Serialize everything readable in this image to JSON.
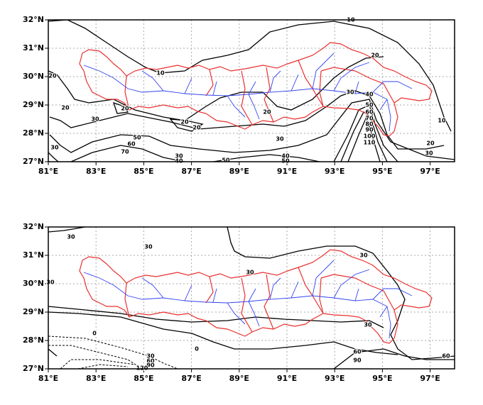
{
  "panels": [
    {
      "lon_ticks": [
        {
          "value": 81,
          "label": "81°E"
        },
        {
          "value": 83,
          "label": "83°E"
        },
        {
          "value": 85,
          "label": "85°E"
        },
        {
          "value": 87,
          "label": "87°E"
        },
        {
          "value": 89,
          "label": "89°E"
        },
        {
          "value": 91,
          "label": "91°E"
        },
        {
          "value": 93,
          "label": "93°E"
        },
        {
          "value": 95,
          "label": "95°E"
        },
        {
          "value": 97,
          "label": "97°E"
        }
      ],
      "lat_ticks": [
        {
          "value": 27,
          "label": "27°N"
        },
        {
          "value": 28,
          "label": "28°N"
        },
        {
          "value": 29,
          "label": "29°N"
        },
        {
          "value": 30,
          "label": "30°N"
        },
        {
          "value": 31,
          "label": "31°N"
        },
        {
          "value": 32,
          "label": "32°N"
        }
      ],
      "contour_labels": [
        "10",
        "20",
        "10",
        "20",
        "20",
        "20",
        "30",
        "40",
        "50",
        "60",
        "70",
        "80",
        "90",
        "100",
        "110",
        "20",
        "20",
        "20",
        "30",
        "50",
        "60",
        "70",
        "30",
        "40",
        "50",
        "40",
        "50",
        "30",
        "30",
        "10",
        "20",
        "30"
      ]
    },
    {
      "lon_ticks": [
        {
          "value": 81,
          "label": "81°E"
        },
        {
          "value": 83,
          "label": "83°E"
        },
        {
          "value": 85,
          "label": "85°E"
        },
        {
          "value": 87,
          "label": "87°E"
        },
        {
          "value": 89,
          "label": "89°E"
        },
        {
          "value": 91,
          "label": "91°E"
        },
        {
          "value": 93,
          "label": "93°E"
        },
        {
          "value": 95,
          "label": "95°E"
        },
        {
          "value": 97,
          "label": "97°E"
        }
      ],
      "lat_ticks": [
        {
          "value": 27,
          "label": "27°N"
        },
        {
          "value": 28,
          "label": "28°N"
        },
        {
          "value": 29,
          "label": "29°N"
        },
        {
          "value": 30,
          "label": "30°N"
        },
        {
          "value": 31,
          "label": "31°N"
        },
        {
          "value": 32,
          "label": "32°N"
        }
      ],
      "contour_labels": [
        "30",
        "30",
        "30",
        "30",
        "30",
        "0",
        "0",
        "30",
        "60",
        "90",
        "120",
        "30",
        "60",
        "90",
        "60"
      ]
    }
  ]
}
